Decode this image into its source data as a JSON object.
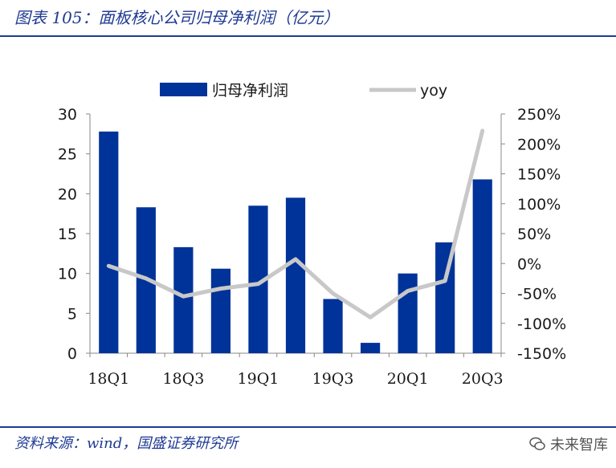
{
  "figure": {
    "title": "图表 105：面板核心公司归母净利润（亿元）",
    "source": "资料来源：wind，国盛证券研究所",
    "watermark": "未来智库"
  },
  "colors": {
    "bar": "#003399",
    "line": "#c8c8c8",
    "title": "#1f3a93"
  },
  "chart_data": {
    "type": "bar",
    "categories": [
      "18Q1",
      "18Q2",
      "18Q3",
      "18Q4",
      "19Q1",
      "19Q2",
      "19Q3",
      "19Q4",
      "20Q1",
      "20Q2",
      "20Q3"
    ],
    "x_tick_labels": [
      "18Q1",
      "18Q3",
      "19Q1",
      "19Q3",
      "20Q1",
      "20Q3"
    ],
    "series": [
      {
        "name": "归母净利润",
        "type": "bar",
        "axis": "left",
        "values": [
          27.8,
          18.3,
          13.3,
          10.6,
          18.5,
          19.5,
          6.8,
          1.3,
          10.0,
          13.9,
          21.8
        ]
      },
      {
        "name": "yoy",
        "type": "line",
        "axis": "right",
        "values": [
          -0.04,
          -0.25,
          -0.55,
          -0.42,
          -0.34,
          0.07,
          -0.5,
          -0.9,
          -0.46,
          -0.29,
          2.22
        ]
      }
    ],
    "y_left": {
      "min": 0,
      "max": 30,
      "ticks": [
        "0",
        "5",
        "10",
        "15",
        "20",
        "25",
        "30"
      ]
    },
    "y_right": {
      "min": -1.5,
      "max": 2.5,
      "ticks": [
        "-150%",
        "-100%",
        "-50%",
        "0%",
        "50%",
        "100%",
        "150%",
        "200%",
        "250%"
      ]
    },
    "legend_position": "top",
    "grid": false
  }
}
